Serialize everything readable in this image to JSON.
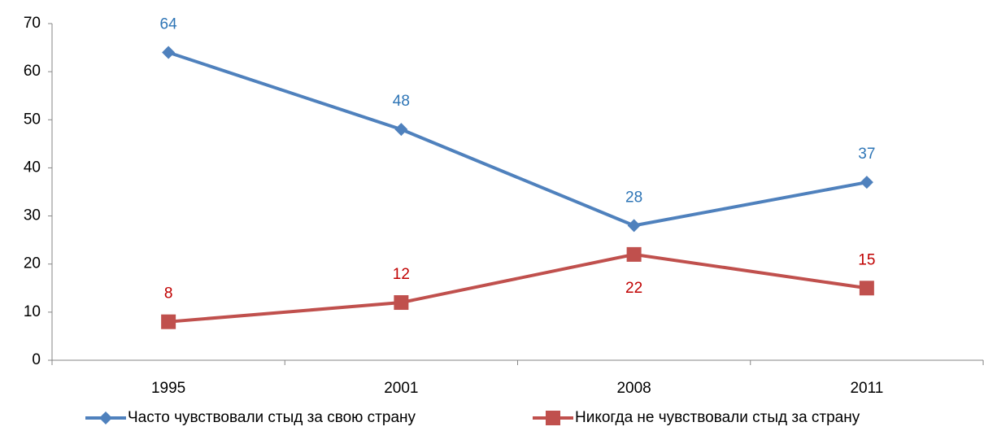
{
  "chart_data": {
    "type": "line",
    "categories": [
      "1995",
      "2001",
      "2008",
      "2011"
    ],
    "series": [
      {
        "name": "Часто чувствовали стыд за свою страну",
        "color": "#4f81bd",
        "label_color": "#2e75b6",
        "marker": "diamond",
        "values": [
          64,
          48,
          28,
          37
        ]
      },
      {
        "name": "Никогда не чувствовали стыд за страну",
        "color": "#c0504d",
        "label_color": "#c00000",
        "marker": "square",
        "values": [
          8,
          12,
          22,
          15
        ]
      }
    ],
    "ylim": [
      0,
      70
    ],
    "yticks": [
      0,
      10,
      20,
      30,
      40,
      50,
      60,
      70
    ],
    "grid": false,
    "legend": "bottom"
  }
}
